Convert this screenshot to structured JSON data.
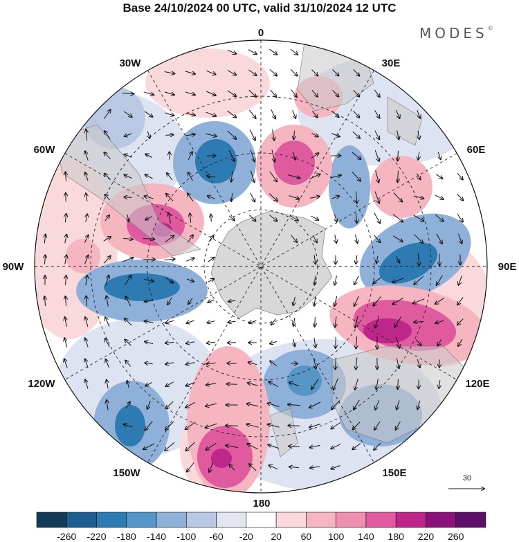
{
  "title": "Base 24/10/2024 00 UTC, valid 31/10/2024 12 UTC",
  "brand": "MODES",
  "brand_mark": "©",
  "longitude_labels": {
    "top": "0",
    "top_right": "30E",
    "right_upper": "60E",
    "right": "90E",
    "right_lower": "120E",
    "bottom_right": "150E",
    "bottom": "180",
    "bottom_left": "150W",
    "left_lower": "120W",
    "left": "90W",
    "left_upper": "60W",
    "top_left": "30W"
  },
  "reference_vector": {
    "label": "30"
  },
  "colorbar": {
    "ticks": [
      "-260",
      "-220",
      "-180",
      "-140",
      "-100",
      "-60",
      "-20",
      "20",
      "60",
      "100",
      "140",
      "180",
      "220",
      "260"
    ],
    "colors": [
      "#133a57",
      "#1c5f8e",
      "#2e7ab2",
      "#5596c6",
      "#8fb0d8",
      "#bac9e3",
      "#e2e6f1",
      "#ffffff",
      "#f9d9db",
      "#f5b6c1",
      "#ef8fb0",
      "#e05aa0",
      "#bf2689",
      "#8a137a",
      "#5b0f66"
    ]
  },
  "map_colors": {
    "land": "#c9c9c9",
    "antarctica": "#d8d8d8",
    "neg_strong": "#2e7ab2",
    "neg_mid": "#8fb0d8",
    "neg_weak": "#dde3f0",
    "pos_weak": "#f9d9db",
    "pos_mid": "#ef8fb0",
    "pos_strong": "#c0288c"
  }
}
